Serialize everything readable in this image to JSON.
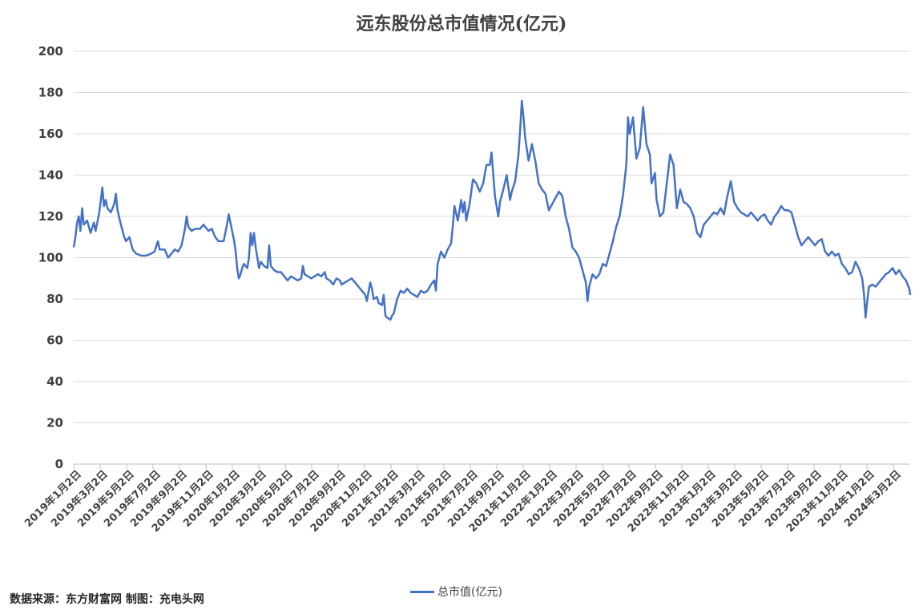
{
  "chart_data": {
    "type": "line",
    "title": "远东股份总市值情况(亿元)",
    "ylim": [
      0,
      200
    ],
    "yticks": [
      "0",
      "20",
      "40",
      "60",
      "80",
      "100",
      "120",
      "140",
      "160",
      "180",
      "200"
    ],
    "xticks": [
      "2019年1月2日",
      "2019年3月2日",
      "2019年5月2日",
      "2019年7月2日",
      "2019年9月2日",
      "2019年11月2日",
      "2020年1月2日",
      "2020年3月2日",
      "2020年5月2日",
      "2020年7月2日",
      "2020年9月2日",
      "2020年11月2日",
      "2021年1月2日",
      "2021年3月2日",
      "2021年5月2日",
      "2021年7月2日",
      "2021年9月2日",
      "2021年11月2日",
      "2022年1月2日",
      "2022年3月2日",
      "2022年5月2日",
      "2022年7月2日",
      "2022年9月2日",
      "2022年11月2日",
      "2023年1月2日",
      "2023年3月2日",
      "2023年5月2日",
      "2023年7月2日",
      "2023年9月2日",
      "2023年11月2日",
      "2024年1月2日",
      "2024年3月2日"
    ],
    "grid": true,
    "legend_position": "bottom",
    "series": [
      {
        "name": "总市值(亿元)",
        "color": "#4472C4",
        "points": [
          [
            0.0,
            105
          ],
          [
            0.1,
            110
          ],
          [
            0.2,
            117
          ],
          [
            0.3,
            120
          ],
          [
            0.4,
            113
          ],
          [
            0.5,
            124
          ],
          [
            0.6,
            116
          ],
          [
            0.8,
            118
          ],
          [
            1.0,
            112
          ],
          [
            1.2,
            117
          ],
          [
            1.3,
            113
          ],
          [
            1.5,
            121
          ],
          [
            1.6,
            127
          ],
          [
            1.7,
            134
          ],
          [
            1.8,
            125
          ],
          [
            1.9,
            128
          ],
          [
            2.0,
            124
          ],
          [
            2.2,
            122
          ],
          [
            2.4,
            126
          ],
          [
            2.5,
            131
          ],
          [
            2.6,
            123
          ],
          [
            2.8,
            116
          ],
          [
            3.0,
            110
          ],
          [
            3.1,
            108
          ],
          [
            3.3,
            110
          ],
          [
            3.5,
            104
          ],
          [
            3.7,
            102
          ],
          [
            4.0,
            101
          ],
          [
            4.3,
            101
          ],
          [
            4.6,
            102
          ],
          [
            4.8,
            103
          ],
          [
            5.0,
            108
          ],
          [
            5.1,
            104
          ],
          [
            5.4,
            104
          ],
          [
            5.6,
            100
          ],
          [
            5.8,
            102
          ],
          [
            6.0,
            104
          ],
          [
            6.2,
            103
          ],
          [
            6.4,
            106
          ],
          [
            6.5,
            110
          ],
          [
            6.6,
            114
          ],
          [
            6.7,
            120
          ],
          [
            6.8,
            115
          ],
          [
            7.0,
            113
          ],
          [
            7.2,
            114
          ],
          [
            7.5,
            114
          ],
          [
            7.7,
            116
          ],
          [
            7.9,
            114
          ],
          [
            8.0,
            113
          ],
          [
            8.2,
            114
          ],
          [
            8.4,
            110
          ],
          [
            8.6,
            108
          ],
          [
            8.9,
            108
          ],
          [
            9.1,
            116
          ],
          [
            9.2,
            121
          ],
          [
            9.3,
            117
          ],
          [
            9.5,
            109
          ],
          [
            9.6,
            104
          ],
          [
            9.7,
            95
          ],
          [
            9.8,
            90
          ],
          [
            9.9,
            92
          ],
          [
            10.0,
            95
          ],
          [
            10.1,
            97
          ],
          [
            10.3,
            95
          ],
          [
            10.4,
            100
          ],
          [
            10.5,
            112
          ],
          [
            10.6,
            106
          ],
          [
            10.7,
            112
          ],
          [
            10.8,
            105
          ],
          [
            11.0,
            95
          ],
          [
            11.1,
            98
          ],
          [
            11.3,
            96
          ],
          [
            11.5,
            95
          ],
          [
            11.6,
            106
          ],
          [
            11.7,
            96
          ],
          [
            11.9,
            94
          ],
          [
            12.1,
            93
          ],
          [
            12.3,
            93
          ],
          [
            12.5,
            91
          ],
          [
            12.7,
            89
          ],
          [
            12.9,
            91
          ],
          [
            13.1,
            90
          ],
          [
            13.3,
            89
          ],
          [
            13.5,
            90
          ],
          [
            13.6,
            96
          ],
          [
            13.7,
            92
          ],
          [
            13.9,
            91
          ],
          [
            14.1,
            90
          ],
          [
            14.3,
            91
          ],
          [
            14.5,
            92
          ],
          [
            14.7,
            91
          ],
          [
            14.9,
            93
          ],
          [
            15.0,
            90
          ],
          [
            15.2,
            89
          ],
          [
            15.4,
            87
          ],
          [
            15.6,
            90
          ],
          [
            15.8,
            89
          ],
          [
            15.9,
            87
          ],
          [
            16.1,
            88
          ],
          [
            16.3,
            89
          ],
          [
            16.5,
            90
          ],
          [
            16.7,
            88
          ],
          [
            16.9,
            86
          ],
          [
            17.1,
            84
          ],
          [
            17.3,
            82
          ],
          [
            17.4,
            79
          ],
          [
            17.6,
            88
          ],
          [
            17.7,
            85
          ],
          [
            17.8,
            80
          ],
          [
            18.0,
            81
          ],
          [
            18.1,
            78
          ],
          [
            18.3,
            77
          ],
          [
            18.4,
            82
          ],
          [
            18.5,
            72
          ],
          [
            18.6,
            71
          ],
          [
            18.8,
            70
          ],
          [
            18.9,
            72
          ],
          [
            19.0,
            73
          ],
          [
            19.2,
            80
          ],
          [
            19.4,
            84
          ],
          [
            19.6,
            83
          ],
          [
            19.8,
            85
          ],
          [
            20.0,
            83
          ],
          [
            20.2,
            82
          ],
          [
            20.4,
            81
          ],
          [
            20.6,
            84
          ],
          [
            20.8,
            83
          ],
          [
            21.0,
            84
          ],
          [
            21.2,
            87
          ],
          [
            21.4,
            89
          ],
          [
            21.5,
            84
          ],
          [
            21.6,
            97
          ],
          [
            21.8,
            103
          ],
          [
            22.0,
            100
          ],
          [
            22.2,
            104
          ],
          [
            22.4,
            107
          ],
          [
            22.5,
            115
          ],
          [
            22.6,
            125
          ],
          [
            22.8,
            118
          ],
          [
            23.0,
            128
          ],
          [
            23.1,
            122
          ],
          [
            23.2,
            127
          ],
          [
            23.3,
            118
          ],
          [
            23.5,
            126
          ],
          [
            23.7,
            138
          ],
          [
            23.9,
            136
          ],
          [
            24.1,
            132
          ],
          [
            24.3,
            136
          ],
          [
            24.5,
            145
          ],
          [
            24.7,
            145
          ],
          [
            24.8,
            151
          ],
          [
            25.0,
            130
          ],
          [
            25.2,
            120
          ],
          [
            25.3,
            127
          ],
          [
            25.5,
            133
          ],
          [
            25.7,
            140
          ],
          [
            25.9,
            128
          ],
          [
            26.0,
            132
          ],
          [
            26.2,
            137
          ],
          [
            26.4,
            150
          ],
          [
            26.5,
            162
          ],
          [
            26.6,
            176
          ],
          [
            26.7,
            168
          ],
          [
            26.8,
            158
          ],
          [
            27.0,
            147
          ],
          [
            27.2,
            155
          ],
          [
            27.4,
            147
          ],
          [
            27.6,
            136
          ],
          [
            27.8,
            133
          ],
          [
            28.0,
            131
          ],
          [
            28.2,
            123
          ],
          [
            28.4,
            126
          ],
          [
            28.6,
            129
          ],
          [
            28.8,
            132
          ],
          [
            29.0,
            130
          ],
          [
            29.2,
            120
          ],
          [
            29.4,
            114
          ],
          [
            29.6,
            105
          ],
          [
            29.8,
            103
          ],
          [
            30.0,
            100
          ],
          [
            30.2,
            94
          ],
          [
            30.4,
            88
          ],
          [
            30.5,
            79
          ],
          [
            30.6,
            86
          ],
          [
            30.8,
            92
          ],
          [
            31.0,
            90
          ],
          [
            31.2,
            92
          ],
          [
            31.4,
            97
          ],
          [
            31.6,
            96
          ],
          [
            31.8,
            102
          ],
          [
            32.0,
            108
          ],
          [
            32.2,
            115
          ],
          [
            32.4,
            120
          ],
          [
            32.6,
            130
          ],
          [
            32.8,
            145
          ],
          [
            32.9,
            168
          ],
          [
            33.0,
            160
          ],
          [
            33.2,
            168
          ],
          [
            33.4,
            148
          ],
          [
            33.6,
            153
          ],
          [
            33.8,
            173
          ],
          [
            34.0,
            155
          ],
          [
            34.2,
            150
          ],
          [
            34.3,
            136
          ],
          [
            34.5,
            141
          ],
          [
            34.6,
            128
          ],
          [
            34.8,
            120
          ],
          [
            35.0,
            122
          ],
          [
            35.2,
            136
          ],
          [
            35.4,
            150
          ],
          [
            35.6,
            145
          ],
          [
            35.8,
            124
          ],
          [
            36.0,
            133
          ],
          [
            36.2,
            127
          ],
          [
            36.4,
            126
          ],
          [
            36.6,
            124
          ],
          [
            36.8,
            120
          ],
          [
            37.0,
            112
          ],
          [
            37.2,
            110
          ],
          [
            37.4,
            116
          ],
          [
            37.6,
            118
          ],
          [
            37.8,
            120
          ],
          [
            38.0,
            122
          ],
          [
            38.2,
            121
          ],
          [
            38.4,
            124
          ],
          [
            38.6,
            121
          ],
          [
            38.8,
            130
          ],
          [
            39.0,
            137
          ],
          [
            39.2,
            127
          ],
          [
            39.4,
            124
          ],
          [
            39.6,
            122
          ],
          [
            39.8,
            121
          ],
          [
            40.0,
            120
          ],
          [
            40.2,
            122
          ],
          [
            40.4,
            120
          ],
          [
            40.6,
            118
          ],
          [
            40.8,
            120
          ],
          [
            41.0,
            121
          ],
          [
            41.2,
            118
          ],
          [
            41.4,
            116
          ],
          [
            41.6,
            120
          ],
          [
            41.8,
            122
          ],
          [
            42.0,
            125
          ],
          [
            42.2,
            123
          ],
          [
            42.4,
            123
          ],
          [
            42.6,
            122
          ],
          [
            42.8,
            116
          ],
          [
            43.0,
            110
          ],
          [
            43.2,
            106
          ],
          [
            43.4,
            108
          ],
          [
            43.6,
            110
          ],
          [
            43.8,
            108
          ],
          [
            44.0,
            106
          ],
          [
            44.2,
            108
          ],
          [
            44.4,
            109
          ],
          [
            44.6,
            103
          ],
          [
            44.8,
            101
          ],
          [
            45.0,
            103
          ],
          [
            45.2,
            101
          ],
          [
            45.4,
            102
          ],
          [
            45.6,
            97
          ],
          [
            45.8,
            95
          ],
          [
            46.0,
            92
          ],
          [
            46.2,
            93
          ],
          [
            46.4,
            98
          ],
          [
            46.6,
            95
          ],
          [
            46.8,
            90
          ],
          [
            46.9,
            83
          ],
          [
            47.0,
            71
          ],
          [
            47.1,
            79
          ],
          [
            47.2,
            86
          ],
          [
            47.4,
            87
          ],
          [
            47.6,
            86
          ],
          [
            47.8,
            88
          ],
          [
            48.0,
            90
          ],
          [
            48.2,
            92
          ],
          [
            48.4,
            93
          ],
          [
            48.6,
            95
          ],
          [
            48.8,
            92
          ],
          [
            49.0,
            94
          ],
          [
            49.2,
            91
          ],
          [
            49.4,
            89
          ],
          [
            49.6,
            85
          ],
          [
            49.65,
            82
          ]
        ]
      }
    ]
  },
  "legend": {
    "label": "总市值(亿元)"
  },
  "source": "数据来源：东方财富网  制图：充电头网"
}
